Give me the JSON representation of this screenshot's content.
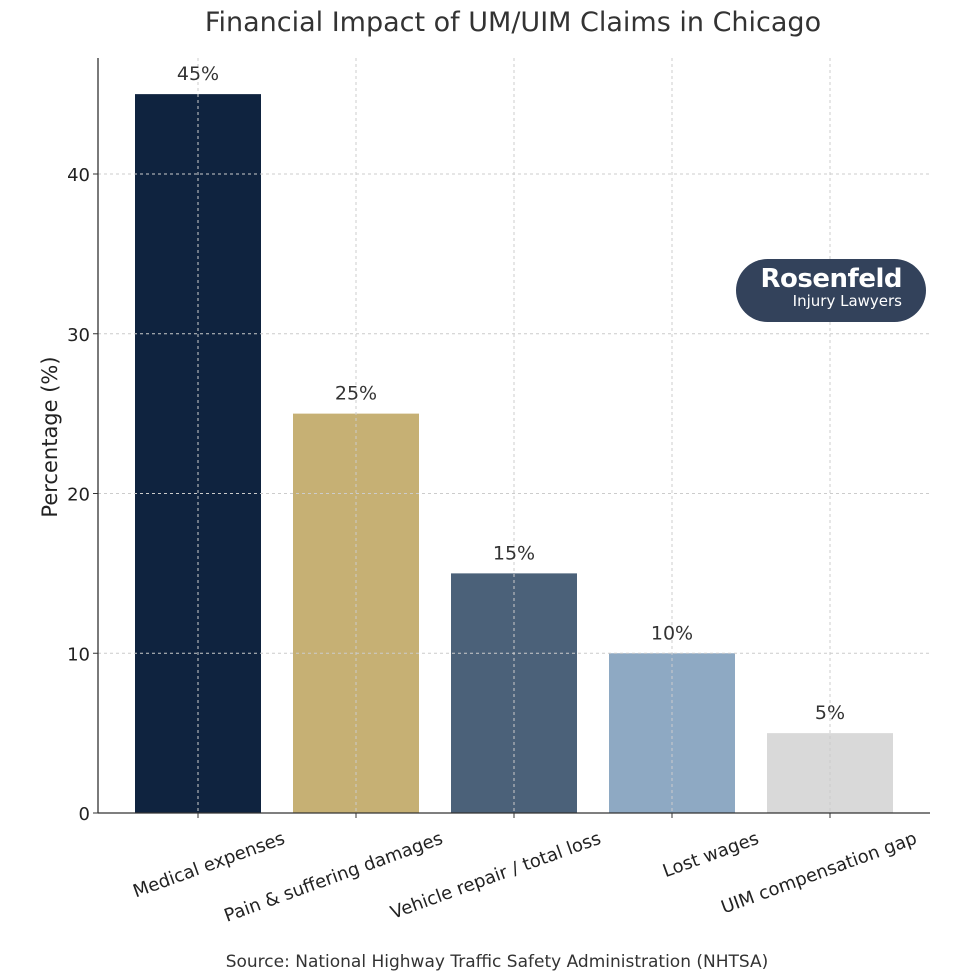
{
  "chart_data": {
    "type": "bar",
    "title": "Financial Impact of UM/UIM Claims in Chicago",
    "xlabel": "",
    "ylabel": "Percentage (%)",
    "categories": [
      "Medical expenses",
      "Pain & suffering damages",
      "Vehicle repair / total loss",
      "Lost wages",
      "UIM compensation gap"
    ],
    "values": [
      45,
      25,
      15,
      10,
      5
    ],
    "data_labels": [
      "45%",
      "25%",
      "15%",
      "10%",
      "5%"
    ],
    "colors": [
      "#0f233f",
      "#c6b074",
      "#4b6179",
      "#8ea9c3",
      "#d9d9d9"
    ],
    "yticks": [
      0,
      10,
      20,
      30,
      40
    ],
    "ylim": [
      0,
      47.5
    ],
    "grid": true,
    "source": "Source: National Highway Traffic Safety Administration (NHTSA)"
  },
  "logo": {
    "line1": "Rosenfeld",
    "line2": "Injury Lawyers"
  }
}
